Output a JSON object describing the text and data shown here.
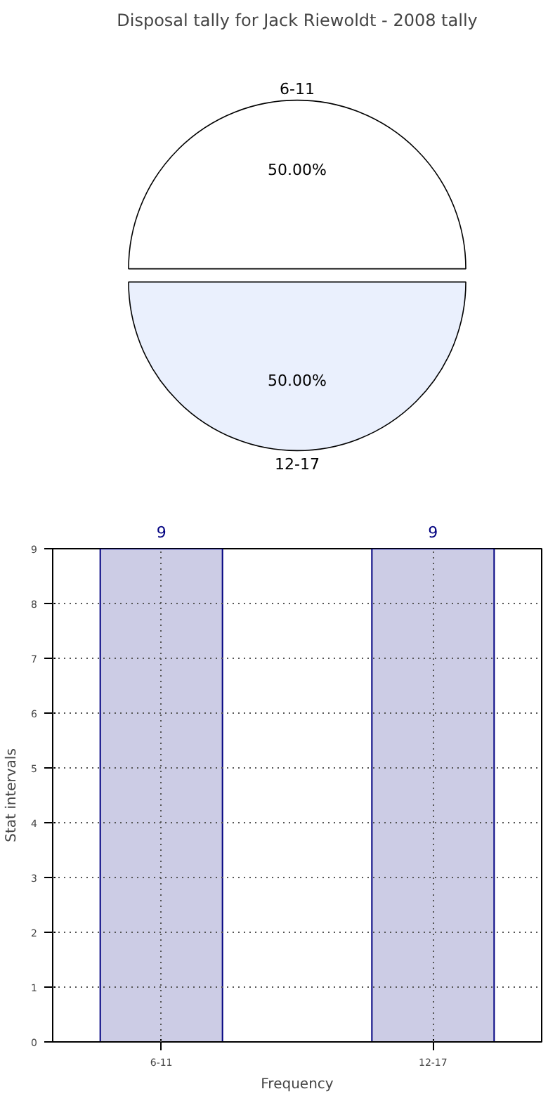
{
  "chart_data": [
    {
      "type": "pie",
      "title": "Disposal tally for Jack Riewoldt - 2008 tally",
      "categories": [
        "6-11",
        "12-17"
      ],
      "values": [
        50,
        50
      ],
      "colors": [
        "#ffffff",
        "#eaf0fd"
      ],
      "value_labels": [
        "50.00%",
        "50.00%"
      ]
    },
    {
      "type": "bar",
      "categories": [
        "6-11",
        "12-17"
      ],
      "values": [
        9,
        9
      ],
      "color": "#ccccE5",
      "xlabel": "Frequency",
      "ylabel": "Stat intervals",
      "ylim": [
        0,
        9
      ],
      "yticks": [
        0,
        1,
        2,
        3,
        4,
        5,
        6,
        7,
        8,
        9
      ],
      "grid": true,
      "data_labels": true
    }
  ]
}
